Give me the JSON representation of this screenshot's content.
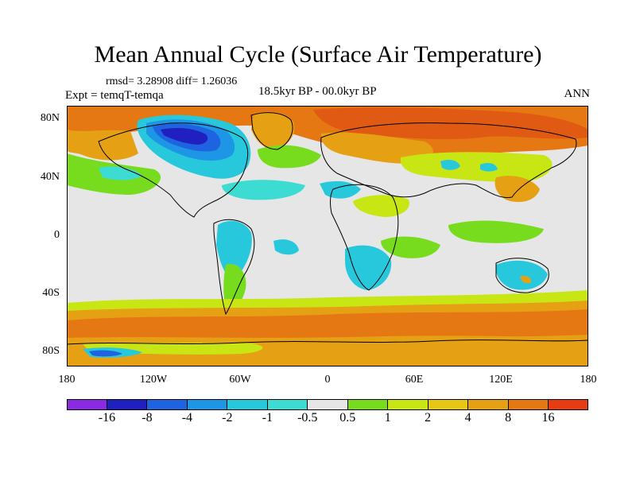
{
  "title": "Mean Annual Cycle (Surface Air Temperature)",
  "stats": "rmsd= 3.28908 diff= 1.26036",
  "experiment": "Expt = temqT-temqa",
  "period": "18.5kyr BP - 00.0kyr BP",
  "season": "ANN",
  "latitude_labels": [
    "80N",
    "40N",
    "0",
    "40S",
    "80S"
  ],
  "longitude_labels": [
    "180",
    "120W",
    "60W",
    "0",
    "60E",
    "120E",
    "180"
  ],
  "colorbar": {
    "labels": [
      "-16",
      "-8",
      "-4",
      "-2",
      "-1",
      "-0.5",
      "0.5",
      "1",
      "2",
      "4",
      "8",
      "16"
    ],
    "colors": [
      "#8a2be2",
      "#2020c0",
      "#1e64e0",
      "#1e96e6",
      "#28c8dc",
      "#3cdcd2",
      "#e6e6e6",
      "#78dc1e",
      "#c8e614",
      "#e6c814",
      "#e6a014",
      "#e67814",
      "#e63c14"
    ]
  },
  "colors": {
    "missing_white": "#e6e6e6",
    "warm_orange": "#e67814",
    "warm_red": "#e05a14",
    "light_orange": "#e6a014",
    "yellow": "#e6c814",
    "lime": "#c8e614",
    "green": "#78dc1e",
    "cyan": "#28c8dc",
    "light_cyan": "#3cdcd2",
    "mid_blue": "#1e96e6",
    "blue": "#1e64e0",
    "dark_blue": "#2020c0"
  }
}
